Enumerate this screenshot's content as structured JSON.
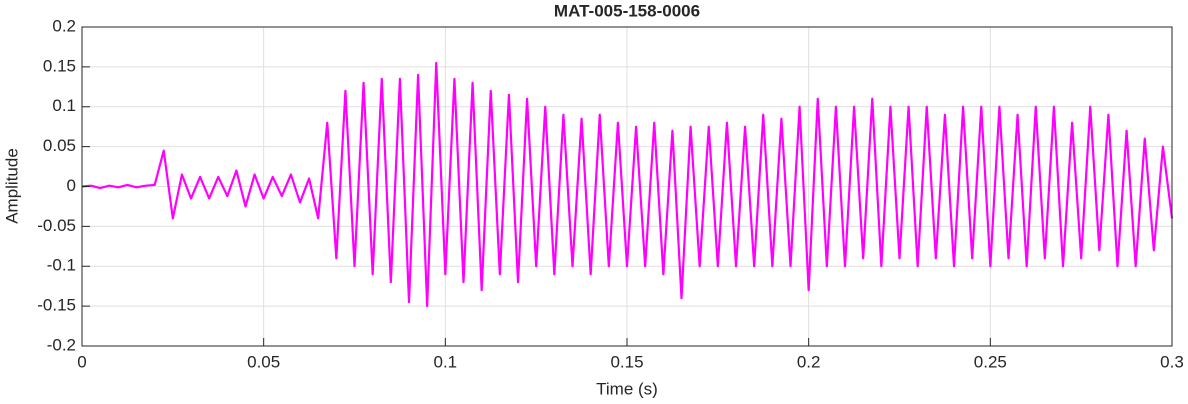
{
  "chart_data": {
    "type": "line",
    "title": "MAT-005-158-0006",
    "x_label": "Time (s)",
    "y_label": "Amplitude",
    "x": [
      0,
      0.0025,
      0.005,
      0.0075,
      0.01,
      0.0125,
      0.015,
      0.0175,
      0.02,
      0.0225,
      0.025,
      0.0275,
      0.03,
      0.0325,
      0.035,
      0.0375,
      0.04,
      0.0425,
      0.045,
      0.0475,
      0.05,
      0.0525,
      0.055,
      0.0575,
      0.06,
      0.0625,
      0.065,
      0.0675,
      0.07,
      0.0725,
      0.075,
      0.0775,
      0.08,
      0.0825,
      0.085,
      0.0875,
      0.09,
      0.0925,
      0.095,
      0.0975,
      0.1,
      0.1025,
      0.105,
      0.1075,
      0.11,
      0.1125,
      0.115,
      0.1175,
      0.12,
      0.1225,
      0.125,
      0.1275,
      0.13,
      0.1325,
      0.135,
      0.1375,
      0.14,
      0.1425,
      0.145,
      0.1475,
      0.15,
      0.1525,
      0.155,
      0.1575,
      0.16,
      0.1625,
      0.165,
      0.1675,
      0.17,
      0.1725,
      0.175,
      0.1775,
      0.18,
      0.1825,
      0.185,
      0.1875,
      0.19,
      0.1925,
      0.195,
      0.1975,
      0.2,
      0.2025,
      0.205,
      0.2075,
      0.21,
      0.2125,
      0.215,
      0.2175,
      0.22,
      0.2225,
      0.225,
      0.2275,
      0.23,
      0.2325,
      0.235,
      0.2375,
      0.24,
      0.2425,
      0.245,
      0.2475,
      0.25,
      0.2525,
      0.255,
      0.2575,
      0.26,
      0.2625,
      0.265,
      0.2675,
      0.27,
      0.2725,
      0.275,
      0.2775,
      0.28,
      0.2825,
      0.285,
      0.2875,
      0.29,
      0.2925,
      0.295,
      0.2975,
      0.3
    ],
    "series": [
      {
        "name": "Amplitude",
        "color": "#ff00ff",
        "values": [
          0,
          0.001,
          -0.002,
          0.001,
          -0.001,
          0.002,
          -0.001,
          0.001,
          0.002,
          0.045,
          -0.04,
          0.015,
          -0.015,
          0.012,
          -0.015,
          0.012,
          -0.012,
          0.02,
          -0.025,
          0.015,
          -0.015,
          0.012,
          -0.012,
          0.015,
          -0.02,
          0.01,
          -0.04,
          0.08,
          -0.09,
          0.12,
          -0.1,
          0.13,
          -0.11,
          0.135,
          -0.12,
          0.135,
          -0.145,
          0.14,
          -0.15,
          0.155,
          -0.11,
          0.135,
          -0.12,
          0.13,
          -0.13,
          0.12,
          -0.11,
          0.115,
          -0.12,
          0.11,
          -0.1,
          0.1,
          -0.11,
          0.09,
          -0.1,
          0.085,
          -0.11,
          0.09,
          -0.1,
          0.08,
          -0.1,
          0.075,
          -0.1,
          0.08,
          -0.11,
          0.07,
          -0.14,
          0.075,
          -0.1,
          0.075,
          -0.1,
          0.08,
          -0.1,
          0.075,
          -0.1,
          0.09,
          -0.1,
          0.085,
          -0.1,
          0.1,
          -0.13,
          0.11,
          -0.1,
          0.1,
          -0.1,
          0.1,
          -0.09,
          0.11,
          -0.1,
          0.1,
          -0.09,
          0.1,
          -0.1,
          0.1,
          -0.09,
          0.09,
          -0.1,
          0.1,
          -0.09,
          0.1,
          -0.1,
          0.1,
          -0.09,
          0.09,
          -0.1,
          0.1,
          -0.09,
          0.1,
          -0.1,
          0.08,
          -0.09,
          0.1,
          -0.08,
          0.09,
          -0.1,
          0.07,
          -0.1,
          0.06,
          -0.08,
          0.05,
          -0.04
        ]
      }
    ],
    "xlim": [
      0,
      0.3
    ],
    "xticks": [
      0,
      0.05,
      0.1,
      0.15,
      0.2,
      0.25,
      0.3
    ],
    "ylim": [
      -0.2,
      0.2
    ],
    "yticks": [
      -0.2,
      -0.15,
      -0.1,
      -0.05,
      0,
      0.05,
      0.1,
      0.15,
      0.2
    ],
    "grid": true
  }
}
